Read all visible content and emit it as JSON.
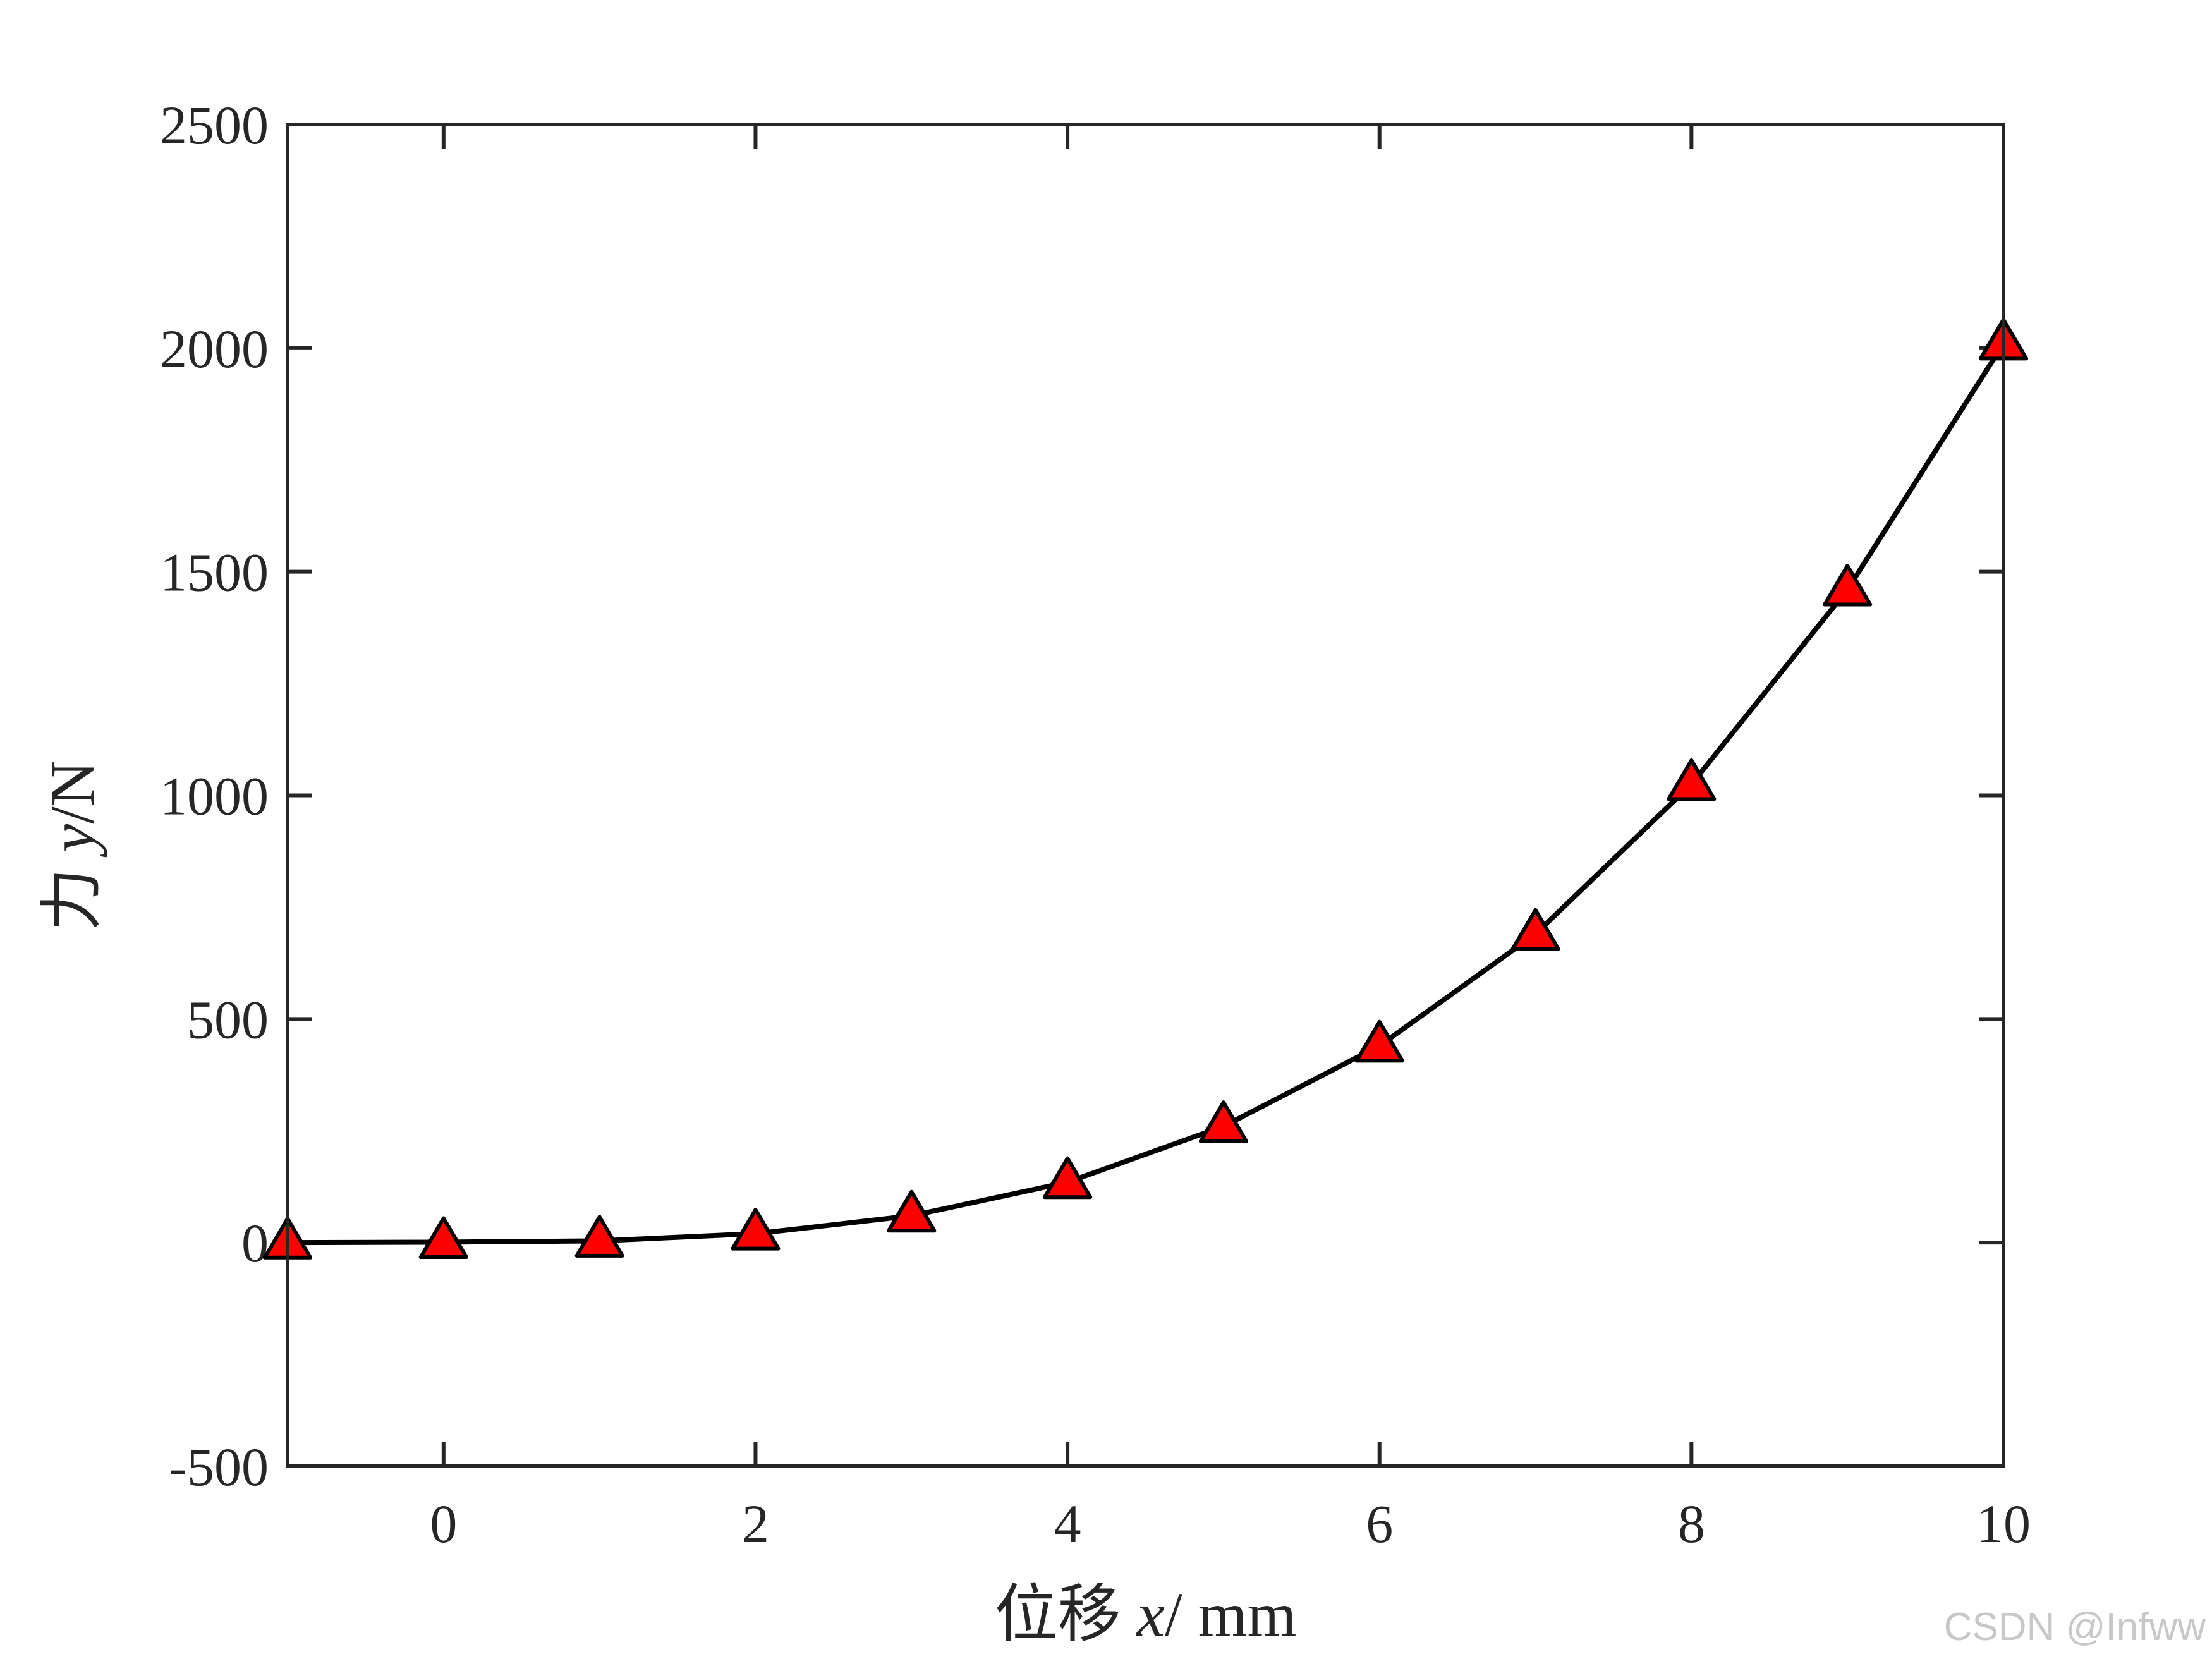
{
  "chart_data": {
    "type": "line",
    "title": "",
    "xlabel": {
      "prefix": "位移 ",
      "var": "x",
      "suffix": "/ mm"
    },
    "ylabel": {
      "prefix": "力 ",
      "var": "y",
      "suffix": "/N"
    },
    "xlim": [
      -1,
      10
    ],
    "ylim": [
      -500,
      2500
    ],
    "xticks": [
      0,
      2,
      4,
      6,
      8,
      10
    ],
    "xtick_labels": [
      "0",
      "2",
      "4",
      "6",
      "8",
      "10"
    ],
    "yticks": [
      -500,
      0,
      500,
      1000,
      1500,
      2000,
      2500
    ],
    "ytick_labels": [
      "-500",
      "0",
      "500",
      "1000",
      "1500",
      "2000",
      "2500"
    ],
    "grid": false,
    "series": [
      {
        "x": [
          -1,
          0,
          1,
          2,
          3,
          4,
          5,
          6,
          7,
          8,
          9,
          10
        ],
        "y": [
          0,
          1,
          4,
          20,
          60,
          135,
          260,
          440,
          690,
          1025,
          1460,
          2010
        ],
        "line_color": "#000000",
        "marker": "triangle",
        "marker_face": "#ff0000",
        "marker_edge": "#000000"
      }
    ]
  },
  "watermark": "CSDN @Infww"
}
